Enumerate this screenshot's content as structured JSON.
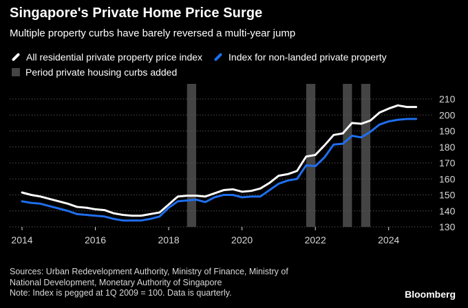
{
  "header": {
    "title": "Singapore's Private Home Price Surge",
    "subtitle": "Multiple property curbs have barely reversed a multi-year jump"
  },
  "legend": {
    "all_label": "All residential private property price index",
    "nonlanded_label": "Index for non-landed private property",
    "curbs_label": "Period private housing curbs added"
  },
  "footer": {
    "sources_line1": "Sources: Urban Redevelopment Authority, Ministry of Finance, Ministry of",
    "sources_line2": "National Development, Monetary Authority of Singapore",
    "note": "Note: Index is pegged at 1Q 2009 = 100. Data is quarterly.",
    "logo": "Bloomberg"
  },
  "colors": {
    "all": "#ffffff",
    "nonlanded": "#1f6fef",
    "curbs": "#444444",
    "grid": "#555555"
  },
  "chart_data": {
    "type": "line",
    "title": "Singapore's Private Home Price Surge",
    "subtitle": "Multiple property curbs have barely reversed a multi-year jump",
    "xlabel": "",
    "ylabel": "",
    "xlim": [
      2014,
      2025
    ],
    "ylim": [
      130,
      210
    ],
    "x_ticks": [
      2014,
      2016,
      2018,
      2020,
      2022,
      2024
    ],
    "y_ticks": [
      130,
      140,
      150,
      160,
      170,
      180,
      190,
      200,
      210
    ],
    "y_axis_position": "right",
    "grid": "horizontal dotted",
    "legend_position": "top-left",
    "x": [
      2014.0,
      2014.25,
      2014.5,
      2014.75,
      2015.0,
      2015.25,
      2015.5,
      2015.75,
      2016.0,
      2016.25,
      2016.5,
      2016.75,
      2017.0,
      2017.25,
      2017.5,
      2017.75,
      2018.0,
      2018.25,
      2018.5,
      2018.75,
      2019.0,
      2019.25,
      2019.5,
      2019.75,
      2020.0,
      2020.25,
      2020.5,
      2020.75,
      2021.0,
      2021.25,
      2021.5,
      2021.75,
      2022.0,
      2022.25,
      2022.5,
      2022.75,
      2023.0,
      2023.25,
      2023.5,
      2023.75,
      2024.0,
      2024.25,
      2024.5,
      2024.75
    ],
    "series": [
      {
        "name": "All residential private property price index",
        "values": [
          151.5,
          150.0,
          149.0,
          147.5,
          146.0,
          144.5,
          142.5,
          142.0,
          141.0,
          140.5,
          138.5,
          137.5,
          137.0,
          137.0,
          138.0,
          139.0,
          144.0,
          149.0,
          149.5,
          149.5,
          149.0,
          151.0,
          153.0,
          153.5,
          152.0,
          152.5,
          154.0,
          157.5,
          162.0,
          163.0,
          165.0,
          174.0,
          175.0,
          181.0,
          187.5,
          188.5,
          195.0,
          194.5,
          196.5,
          201.5,
          204.0,
          206.0,
          205.0,
          205.0
        ]
      },
      {
        "name": "Index for non-landed private property",
        "values": [
          146.0,
          145.0,
          144.5,
          143.0,
          141.5,
          140.0,
          138.0,
          137.5,
          137.0,
          136.5,
          135.0,
          134.0,
          134.0,
          134.0,
          135.0,
          136.5,
          142.0,
          146.0,
          146.5,
          147.0,
          145.5,
          148.5,
          150.0,
          150.0,
          148.5,
          149.0,
          149.0,
          153.0,
          157.0,
          159.0,
          160.0,
          168.5,
          168.0,
          173.5,
          181.5,
          182.0,
          187.0,
          186.0,
          189.5,
          194.0,
          196.0,
          197.0,
          197.5,
          197.5
        ]
      }
    ],
    "curb_periods": [
      {
        "start": 2018.5,
        "end": 2018.75
      },
      {
        "start": 2021.75,
        "end": 2022.0
      },
      {
        "start": 2022.75,
        "end": 2023.0
      },
      {
        "start": 2023.25,
        "end": 2023.5
      }
    ]
  }
}
